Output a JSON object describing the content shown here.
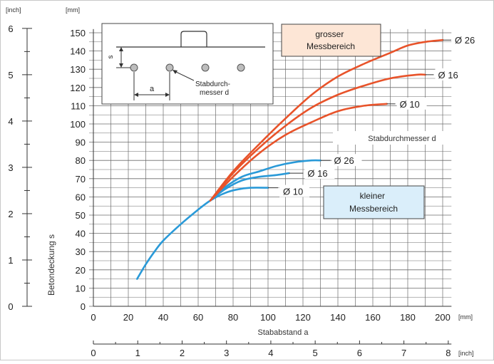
{
  "chart_data": {
    "type": "line",
    "xlabel": "Stababstand a",
    "ylabel": "Betondeckung s",
    "x_unit": "[mm]",
    "y_unit": "[mm]",
    "x_inch_unit": "[inch]",
    "y_inch_unit": "[inch]",
    "xlim": [
      0,
      210
    ],
    "ylim": [
      0,
      155
    ],
    "x_ticks": [
      "0",
      "20",
      "40",
      "60",
      "80",
      "100",
      "120",
      "140",
      "160",
      "180",
      "200"
    ],
    "y_ticks": [
      "0",
      "10",
      "20",
      "30",
      "40",
      "50",
      "60",
      "70",
      "80",
      "90",
      "100",
      "110",
      "120",
      "130",
      "140",
      "150"
    ],
    "x_inch_ticks": [
      "0",
      "1",
      "2",
      "3",
      "4",
      "5",
      "6",
      "7",
      "8"
    ],
    "y_inch_ticks": [
      "0",
      "1",
      "2",
      "3",
      "4",
      "5",
      "6"
    ],
    "grid": true,
    "colors": {
      "gross": "#e8532a",
      "klein": "#2a9ad8"
    },
    "series": [
      {
        "name": "Ø 10",
        "group": "klein",
        "label_text": "Ø 10",
        "x": [
          25,
          30,
          35,
          40,
          50,
          60,
          67,
          75,
          82,
          90,
          100
        ],
        "y": [
          15,
          23,
          30,
          36,
          45,
          53,
          58,
          62,
          64,
          65,
          65
        ]
      },
      {
        "name": "Ø 16",
        "group": "klein",
        "label_text": "Ø 16",
        "x": [
          67,
          75,
          85,
          95,
          105,
          112
        ],
        "y": [
          58,
          64,
          69,
          71,
          72,
          73
        ]
      },
      {
        "name": "Ø 26",
        "group": "klein",
        "label_text": "Ø 26",
        "x": [
          67,
          75,
          85,
          95,
          105,
          115,
          125,
          130
        ],
        "y": [
          58,
          65,
          71,
          74,
          77,
          79,
          80,
          80
        ]
      },
      {
        "name": "Ø 10",
        "group": "gross",
        "label_text": "Ø 10",
        "x": [
          67,
          80,
          95,
          110,
          125,
          140,
          155,
          168
        ],
        "y": [
          58,
          71,
          84,
          94,
          101,
          107,
          110,
          111
        ]
      },
      {
        "name": "Ø 16",
        "group": "gross",
        "label_text": "Ø 16",
        "x": [
          67,
          80,
          95,
          110,
          125,
          140,
          155,
          170,
          185,
          190
        ],
        "y": [
          58,
          73,
          87,
          99,
          109,
          116,
          121,
          125,
          127,
          127
        ]
      },
      {
        "name": "Ø 26",
        "group": "gross",
        "label_text": "Ø 26",
        "x": [
          67,
          80,
          95,
          110,
          125,
          140,
          155,
          170,
          180,
          190,
          200
        ],
        "y": [
          58,
          74,
          89,
          103,
          116,
          126,
          133,
          139,
          143,
          145,
          146
        ]
      }
    ],
    "annotations": {
      "gross": "grosser Messbereich",
      "klein": "kleiner Messbereich",
      "stabdurchmesser": "Stabdurchmesser d"
    },
    "inset": {
      "s": "s",
      "a": "a",
      "bar_label": "Stabdurch-\nmesser d"
    }
  }
}
